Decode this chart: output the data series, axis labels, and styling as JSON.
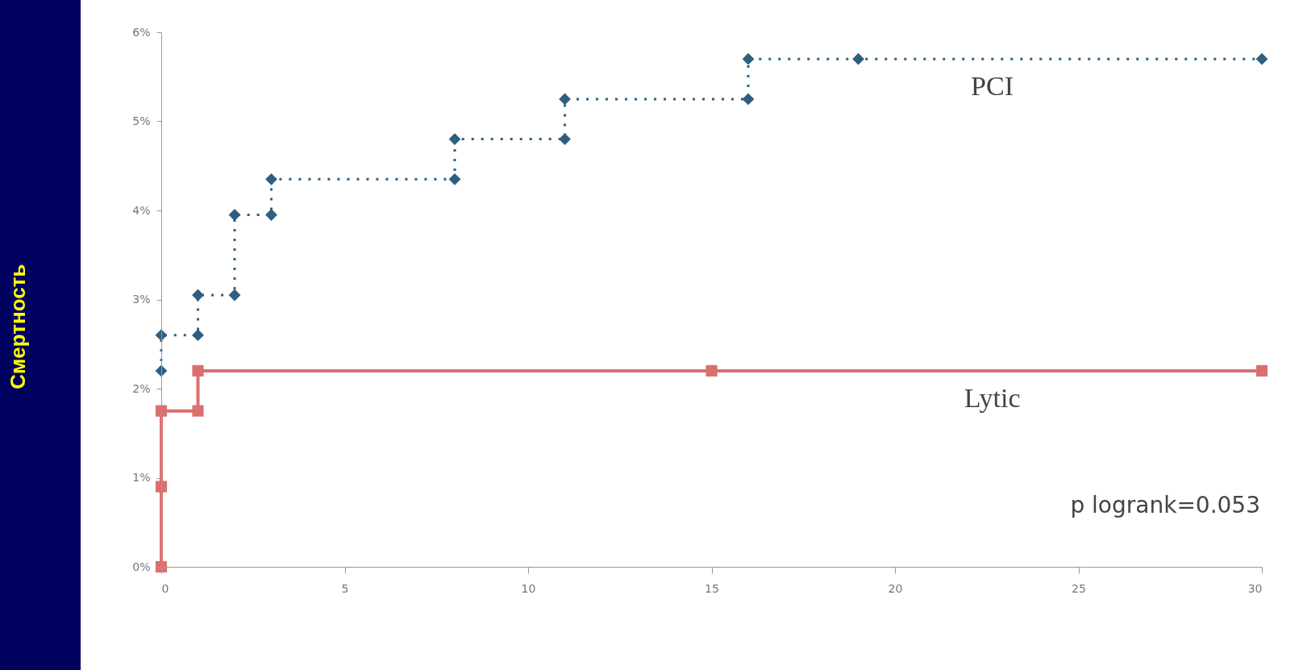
{
  "chart_data": {
    "type": "line",
    "ylabel": "Смертность",
    "annotations": [
      "p logrank=0.053"
    ],
    "xlim": [
      0,
      30
    ],
    "xticks": [
      0,
      5,
      10,
      15,
      20,
      25,
      30
    ],
    "ylim": [
      0,
      6
    ],
    "yticks": [
      {
        "value": 0,
        "label": "0%"
      },
      {
        "value": 1,
        "label": "1%"
      },
      {
        "value": 2,
        "label": "2%"
      },
      {
        "value": 3,
        "label": "3%"
      },
      {
        "value": 4,
        "label": "4%"
      },
      {
        "value": 5,
        "label": "5%"
      },
      {
        "value": 6,
        "label": "6%"
      }
    ],
    "grid": false,
    "legend": false,
    "series": [
      {
        "name": "PCI",
        "color": "#2f5f7f",
        "marker": "diamond",
        "line_style": "dotted",
        "x": [
          0,
          0,
          1,
          1,
          2,
          2,
          3,
          3,
          8,
          8,
          11,
          11,
          16,
          16,
          19,
          30
        ],
        "values": [
          2.2,
          2.6,
          2.6,
          3.05,
          3.05,
          3.95,
          3.95,
          4.35,
          4.35,
          4.8,
          4.8,
          5.25,
          5.25,
          5.7,
          5.7,
          5.7
        ]
      },
      {
        "name": "Lytic",
        "color": "#d9706f",
        "marker": "square",
        "line_style": "solid",
        "x": [
          0,
          0,
          0,
          1,
          1,
          15,
          30
        ],
        "values": [
          0,
          0.9,
          1.75,
          1.75,
          2.2,
          2.2,
          2.2
        ]
      }
    ]
  }
}
